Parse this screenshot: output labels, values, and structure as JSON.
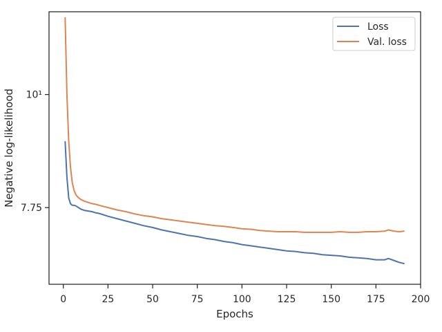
{
  "chart_data": {
    "type": "line",
    "xlabel": "Epochs",
    "ylabel": "Negative log-likelihood",
    "yscale": "log",
    "xlim": [
      -8,
      200
    ],
    "ylim": [
      6.52,
      12.05
    ],
    "xticks": [
      0,
      25,
      50,
      75,
      100,
      125,
      150,
      175,
      200
    ],
    "xtick_labels": [
      "0",
      "25",
      "50",
      "75",
      "100",
      "125",
      "150",
      "175",
      "200"
    ],
    "yticks": [
      7.75,
      10
    ],
    "ytick_labels": [
      "7.75",
      "10¹"
    ],
    "grid": false,
    "legend": "top-right",
    "colors": {
      "loss": "#4c72b0",
      "val_loss": "#dd8452",
      "axis": "#262626"
    },
    "series": [
      {
        "name": "Loss",
        "x": [
          1,
          2,
          3,
          4,
          5,
          6,
          7,
          8,
          9,
          10,
          12,
          14,
          16,
          18,
          20,
          25,
          30,
          35,
          40,
          45,
          50,
          55,
          60,
          65,
          70,
          75,
          80,
          85,
          90,
          95,
          100,
          105,
          110,
          115,
          120,
          125,
          130,
          135,
          140,
          145,
          150,
          155,
          160,
          165,
          170,
          175,
          180,
          182,
          185,
          188,
          191
        ],
        "values": [
          9.0,
          8.3,
          7.92,
          7.82,
          7.79,
          7.79,
          7.78,
          7.76,
          7.74,
          7.72,
          7.7,
          7.69,
          7.68,
          7.66,
          7.65,
          7.6,
          7.56,
          7.52,
          7.48,
          7.44,
          7.41,
          7.37,
          7.34,
          7.31,
          7.28,
          7.26,
          7.23,
          7.21,
          7.18,
          7.16,
          7.13,
          7.11,
          7.09,
          7.07,
          7.05,
          7.03,
          7.02,
          7.0,
          6.99,
          6.97,
          6.96,
          6.95,
          6.93,
          6.92,
          6.91,
          6.89,
          6.89,
          6.91,
          6.88,
          6.85,
          6.83
        ]
      },
      {
        "name": "Val. loss",
        "x": [
          1,
          2,
          3,
          4,
          5,
          6,
          7,
          8,
          9,
          10,
          12,
          14,
          16,
          18,
          20,
          25,
          30,
          35,
          40,
          45,
          50,
          55,
          60,
          65,
          70,
          75,
          80,
          85,
          90,
          95,
          100,
          105,
          110,
          115,
          120,
          125,
          130,
          135,
          140,
          145,
          150,
          155,
          160,
          165,
          170,
          175,
          180,
          182,
          185,
          188,
          191
        ],
        "values": [
          11.9,
          10.0,
          9.0,
          8.5,
          8.2,
          8.06,
          7.98,
          7.94,
          7.91,
          7.89,
          7.86,
          7.84,
          7.82,
          7.81,
          7.79,
          7.75,
          7.71,
          7.68,
          7.64,
          7.61,
          7.59,
          7.56,
          7.54,
          7.52,
          7.5,
          7.48,
          7.46,
          7.44,
          7.43,
          7.41,
          7.39,
          7.38,
          7.36,
          7.35,
          7.34,
          7.34,
          7.34,
          7.33,
          7.33,
          7.33,
          7.33,
          7.34,
          7.33,
          7.33,
          7.34,
          7.34,
          7.35,
          7.37,
          7.35,
          7.34,
          7.35
        ]
      }
    ]
  }
}
